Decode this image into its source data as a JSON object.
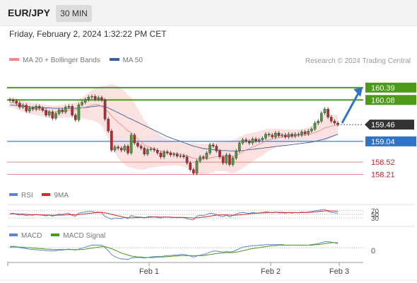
{
  "header": {
    "symbol": "EUR/JPY",
    "timeframe": "30 MIN",
    "datetime": "Friday, February 2, 2024 1:32:22 PM CET"
  },
  "legend": {
    "ma20": "MA 20 + Bollinger Bands",
    "ma50": "MA 50",
    "research": "Research © 2024 Trading Central",
    "rsi": "RSI",
    "rsi_ma": "9MA",
    "macd": "MACD",
    "macd_signal": "MACD Signal"
  },
  "colors": {
    "ma20": "#e98f8f",
    "ma50": "#3d5f9e",
    "bands": "#fbd7d7",
    "bull": "#4c9a3b",
    "bear": "#c0262e",
    "resistance": "#4d9a19",
    "support_blue": "#2e73c8",
    "support_red": "#e08a8a",
    "current": "#333333",
    "rsi": "#5b86d6",
    "rsi_ma": "#d62a2a",
    "macd": "#5b86d6",
    "macd_signal": "#4d9a19"
  },
  "chart_data": [
    {
      "type": "candlestick",
      "title": "EUR/JPY",
      "x_ticks": [
        "Feb 1",
        "Feb 2",
        "Feb 3"
      ],
      "price_range": [
        157.9,
        160.6
      ],
      "current_price": 159.46,
      "levels": [
        {
          "value": 160.39,
          "label": "160.39",
          "kind": "resistance"
        },
        {
          "value": 160.08,
          "label": "160.08",
          "kind": "resistance"
        },
        {
          "value": 159.46,
          "label": "159.46",
          "kind": "current"
        },
        {
          "value": 159.04,
          "label": "159.04",
          "kind": "support_blue"
        },
        {
          "value": 158.52,
          "label": "158.52",
          "kind": "support_red"
        },
        {
          "value": 158.21,
          "label": "158.21",
          "kind": "support_red"
        }
      ],
      "arrow": {
        "from": 159.5,
        "to": 160.39,
        "direction": "up"
      },
      "close": [
        160.07,
        160.05,
        160.0,
        159.9,
        159.95,
        159.8,
        159.88,
        159.85,
        159.92,
        159.87,
        159.82,
        159.7,
        159.78,
        159.62,
        159.74,
        159.83,
        159.78,
        159.9,
        159.92,
        159.7,
        159.58,
        159.96,
        160.02,
        160.09,
        160.15,
        160.17,
        160.1,
        160.14,
        160.08,
        159.6,
        159.3,
        158.82,
        158.9,
        158.87,
        158.82,
        158.92,
        158.75,
        159.2,
        159.0,
        158.92,
        158.87,
        158.72,
        158.84,
        158.85,
        158.82,
        158.75,
        158.65,
        158.78,
        158.75,
        158.7,
        158.72,
        158.67,
        158.68,
        158.65,
        158.5,
        158.33,
        158.24,
        158.55,
        158.65,
        158.62,
        158.75,
        158.95,
        158.92,
        158.8,
        158.65,
        158.5,
        158.7,
        158.46,
        158.62,
        158.8,
        159.0,
        159.08,
        159.05,
        159.0,
        159.1,
        159.05,
        159.08,
        159.12,
        159.22,
        159.2,
        159.15,
        159.25,
        159.18,
        159.2,
        159.15,
        159.22,
        159.17,
        159.22,
        159.2,
        159.28,
        159.23,
        159.3,
        159.35,
        159.5,
        159.55,
        159.75,
        159.85,
        159.65,
        159.55,
        159.5,
        159.46
      ],
      "ma20": [
        160.0,
        160.02,
        159.98,
        159.95,
        159.92,
        159.9,
        159.88,
        159.86,
        159.85,
        159.83,
        159.82,
        159.8,
        159.79,
        159.78,
        159.78,
        159.79,
        159.8,
        159.81,
        159.82,
        159.82,
        159.83,
        159.86,
        159.88,
        159.9,
        159.92,
        159.95,
        159.96,
        159.96,
        159.92,
        159.86,
        159.78,
        159.68,
        159.6,
        159.52,
        159.45,
        159.38,
        159.3,
        159.26,
        159.18,
        159.1,
        159.02,
        158.95,
        158.92,
        158.88,
        158.85,
        158.82,
        158.8,
        158.78,
        158.76,
        158.75,
        158.74,
        158.73,
        158.72,
        158.7,
        158.68,
        158.65,
        158.62,
        158.6,
        158.6,
        158.6,
        158.6,
        158.62,
        158.64,
        158.66,
        158.66,
        158.66,
        158.67,
        158.65,
        158.66,
        158.69,
        158.73,
        158.78,
        158.83,
        158.86,
        158.9,
        158.93,
        158.97,
        159.0,
        159.05,
        159.08,
        159.1,
        159.12,
        159.14,
        159.15,
        159.16,
        159.17,
        159.17,
        159.18,
        159.18,
        159.19,
        159.2,
        159.21,
        159.23,
        159.26,
        159.29,
        159.33,
        159.38,
        159.4,
        159.42,
        159.44,
        159.46
      ],
      "ma50": [
        159.95,
        159.95,
        159.94,
        159.93,
        159.92,
        159.92,
        159.91,
        159.9,
        159.9,
        159.89,
        159.89,
        159.88,
        159.88,
        159.87,
        159.87,
        159.87,
        159.87,
        159.87,
        159.87,
        159.87,
        159.87,
        159.88,
        159.88,
        159.89,
        159.9,
        159.91,
        159.92,
        159.93,
        159.93,
        159.91,
        159.88,
        159.84,
        159.8,
        159.76,
        159.72,
        159.68,
        159.63,
        159.6,
        159.56,
        159.52,
        159.48,
        159.44,
        159.4,
        159.36,
        159.32,
        159.28,
        159.24,
        159.2,
        159.16,
        159.13,
        159.1,
        159.07,
        159.04,
        159.01,
        158.98,
        158.95,
        158.92,
        158.9,
        158.88,
        158.86,
        158.85,
        158.84,
        158.83,
        158.82,
        158.82,
        158.81,
        158.81,
        158.8,
        158.8,
        158.8,
        158.8,
        158.81,
        158.82,
        158.83,
        158.84,
        158.85,
        158.86,
        158.87,
        158.88,
        158.89,
        158.9,
        158.91,
        158.92,
        158.93,
        158.94,
        158.95,
        158.96,
        158.97,
        158.98,
        158.99,
        159.0,
        159.01,
        159.02,
        159.04,
        159.06,
        159.08,
        159.1,
        159.13,
        159.16,
        159.19,
        159.22
      ],
      "band_width": [
        0.12,
        0.13,
        0.13,
        0.14,
        0.14,
        0.14,
        0.15,
        0.15,
        0.15,
        0.15,
        0.15,
        0.16,
        0.16,
        0.16,
        0.16,
        0.16,
        0.17,
        0.17,
        0.18,
        0.18,
        0.19,
        0.22,
        0.26,
        0.3,
        0.34,
        0.38,
        0.42,
        0.45,
        0.5,
        0.58,
        0.68,
        0.8,
        0.86,
        0.9,
        0.92,
        0.92,
        0.9,
        0.88,
        0.82,
        0.76,
        0.7,
        0.62,
        0.56,
        0.5,
        0.46,
        0.42,
        0.38,
        0.36,
        0.34,
        0.32,
        0.3,
        0.3,
        0.3,
        0.3,
        0.32,
        0.34,
        0.38,
        0.38,
        0.38,
        0.38,
        0.38,
        0.38,
        0.37,
        0.36,
        0.36,
        0.37,
        0.38,
        0.4,
        0.42,
        0.42,
        0.42,
        0.41,
        0.4,
        0.38,
        0.36,
        0.34,
        0.33,
        0.32,
        0.3,
        0.28,
        0.26,
        0.24,
        0.22,
        0.2,
        0.19,
        0.18,
        0.17,
        0.16,
        0.16,
        0.16,
        0.17,
        0.18,
        0.2,
        0.22,
        0.25,
        0.3,
        0.34,
        0.33,
        0.3,
        0.27,
        0.24
      ]
    },
    {
      "type": "line",
      "title": "RSI",
      "ylim": [
        0,
        100
      ],
      "levels": [
        70,
        50,
        30
      ],
      "series": [
        {
          "name": "RSI",
          "values": [
            54,
            56,
            50,
            46,
            48,
            44,
            47,
            45,
            50,
            47,
            45,
            42,
            46,
            40,
            46,
            52,
            49,
            55,
            56,
            44,
            40,
            57,
            60,
            63,
            66,
            66,
            60,
            63,
            58,
            38,
            32,
            24,
            30,
            29,
            27,
            33,
            27,
            44,
            38,
            36,
            35,
            30,
            37,
            38,
            36,
            33,
            30,
            36,
            35,
            33,
            34,
            32,
            33,
            32,
            26,
            22,
            20,
            40,
            45,
            43,
            49,
            57,
            54,
            48,
            42,
            37,
            46,
            36,
            44,
            52,
            58,
            60,
            58,
            55,
            61,
            57,
            58,
            60,
            64,
            62,
            58,
            63,
            58,
            59,
            56,
            60,
            57,
            60,
            59,
            63,
            60,
            63,
            65,
            70,
            71,
            75,
            77,
            66,
            61,
            58,
            56
          ]
        },
        {
          "name": "9MA",
          "values": [
            53,
            54,
            53,
            52,
            51,
            50,
            49,
            48,
            48,
            47,
            47,
            46,
            46,
            45,
            45,
            46,
            46,
            47,
            48,
            48,
            47,
            49,
            51,
            53,
            55,
            57,
            59,
            60,
            61,
            58,
            55,
            50,
            46,
            42,
            38,
            34,
            31,
            31,
            32,
            33,
            33,
            33,
            34,
            35,
            36,
            36,
            35,
            35,
            35,
            35,
            34,
            34,
            34,
            33,
            32,
            31,
            30,
            31,
            33,
            35,
            37,
            40,
            43,
            46,
            47,
            47,
            47,
            46,
            45,
            46,
            47,
            49,
            51,
            53,
            55,
            56,
            57,
            58,
            59,
            60,
            60,
            61,
            61,
            61,
            60,
            60,
            60,
            60,
            59,
            60,
            60,
            61,
            62,
            63,
            65,
            67,
            69,
            70,
            69,
            68,
            66
          ]
        }
      ]
    },
    {
      "type": "line",
      "title": "MACD",
      "level_label": "0",
      "series": [
        {
          "name": "MACD",
          "values": [
            0.02,
            0.03,
            0.02,
            0.0,
            -0.01,
            -0.02,
            -0.03,
            -0.04,
            -0.04,
            -0.05,
            -0.05,
            -0.06,
            -0.06,
            -0.07,
            -0.06,
            -0.05,
            -0.05,
            -0.04,
            -0.03,
            -0.04,
            -0.05,
            -0.03,
            -0.01,
            0.01,
            0.03,
            0.05,
            0.05,
            0.05,
            0.05,
            0.0,
            -0.06,
            -0.14,
            -0.18,
            -0.21,
            -0.23,
            -0.23,
            -0.24,
            -0.21,
            -0.2,
            -0.2,
            -0.2,
            -0.21,
            -0.2,
            -0.19,
            -0.18,
            -0.18,
            -0.18,
            -0.17,
            -0.16,
            -0.16,
            -0.15,
            -0.15,
            -0.14,
            -0.14,
            -0.15,
            -0.17,
            -0.19,
            -0.17,
            -0.15,
            -0.14,
            -0.12,
            -0.09,
            -0.07,
            -0.07,
            -0.08,
            -0.09,
            -0.08,
            -0.09,
            -0.08,
            -0.05,
            -0.02,
            0.01,
            0.02,
            0.03,
            0.04,
            0.04,
            0.05,
            0.05,
            0.06,
            0.06,
            0.06,
            0.06,
            0.06,
            0.06,
            0.05,
            0.05,
            0.05,
            0.05,
            0.05,
            0.05,
            0.05,
            0.05,
            0.06,
            0.07,
            0.08,
            0.1,
            0.12,
            0.12,
            0.11,
            0.1,
            0.08
          ]
        },
        {
          "name": "MACD Signal",
          "values": [
            0.01,
            0.01,
            0.01,
            0.01,
            0.01,
            0.0,
            0.0,
            -0.01,
            -0.01,
            -0.02,
            -0.02,
            -0.03,
            -0.03,
            -0.04,
            -0.04,
            -0.04,
            -0.04,
            -0.04,
            -0.04,
            -0.04,
            -0.04,
            -0.04,
            -0.04,
            -0.03,
            -0.02,
            -0.01,
            0.0,
            0.01,
            0.02,
            0.02,
            0.0,
            -0.02,
            -0.05,
            -0.08,
            -0.11,
            -0.13,
            -0.15,
            -0.17,
            -0.18,
            -0.19,
            -0.19,
            -0.2,
            -0.2,
            -0.2,
            -0.2,
            -0.19,
            -0.19,
            -0.19,
            -0.18,
            -0.18,
            -0.17,
            -0.17,
            -0.16,
            -0.16,
            -0.16,
            -0.16,
            -0.16,
            -0.16,
            -0.16,
            -0.16,
            -0.15,
            -0.14,
            -0.13,
            -0.12,
            -0.11,
            -0.11,
            -0.1,
            -0.1,
            -0.1,
            -0.09,
            -0.08,
            -0.06,
            -0.05,
            -0.03,
            -0.02,
            -0.01,
            0.0,
            0.01,
            0.02,
            0.03,
            0.04,
            0.04,
            0.05,
            0.05,
            0.05,
            0.05,
            0.05,
            0.05,
            0.05,
            0.05,
            0.05,
            0.05,
            0.05,
            0.06,
            0.06,
            0.07,
            0.08,
            0.09,
            0.1,
            0.1,
            0.1
          ]
        }
      ]
    }
  ]
}
